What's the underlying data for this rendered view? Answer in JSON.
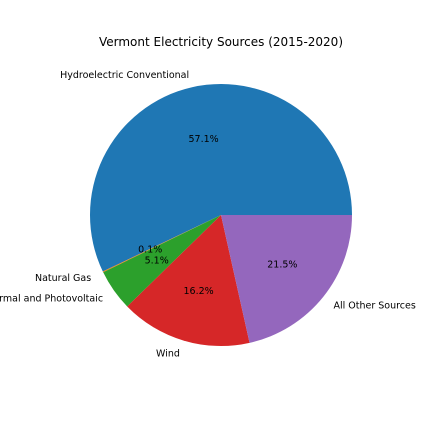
{
  "chart_data": {
    "type": "pie",
    "title": "Vermont Electricity Sources (2015-2020)",
    "slices": [
      {
        "label": "Hydroelectric Conventional",
        "value": 57.1,
        "pct_label": "57.1%",
        "color": "#1f77b4"
      },
      {
        "label": "Natural Gas",
        "value": 0.1,
        "pct_label": "0.1%",
        "color": "#ff7f0e"
      },
      {
        "label": "Solar Thermal and Photovoltaic",
        "value": 5.1,
        "pct_label": "5.1%",
        "color": "#2ca02c"
      },
      {
        "label": "Wind",
        "value": 16.2,
        "pct_label": "16.2%",
        "color": "#d62728"
      },
      {
        "label": "All Other Sources",
        "value": 21.5,
        "pct_label": "21.5%",
        "color": "#9467bd"
      }
    ]
  }
}
